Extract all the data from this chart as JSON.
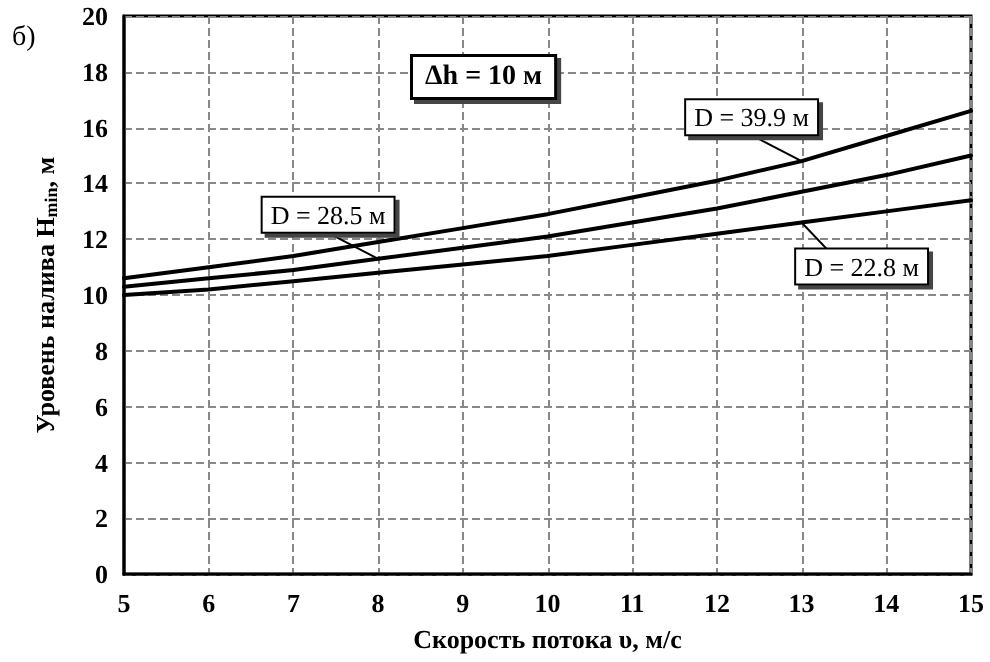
{
  "chart_data": {
    "type": "line",
    "xlabel": "Скорость потока υ, м/с",
    "ylabel": "Уровень налива H$_{min}$, м",
    "annotations": [
      "б)",
      "Δh = 10 м"
    ],
    "x": [
      5,
      6,
      7,
      8,
      9,
      10,
      11,
      12,
      13,
      14,
      15
    ],
    "series": [
      {
        "name": "D = 39.9 м",
        "color": "#000000",
        "values": [
          10.6,
          11.0,
          11.4,
          11.9,
          12.4,
          12.9,
          13.5,
          14.1,
          14.8,
          15.7,
          16.6
        ]
      },
      {
        "name": "D = 28.5 м",
        "color": "#000000",
        "values": [
          10.3,
          10.6,
          10.9,
          11.3,
          11.7,
          12.1,
          12.6,
          13.1,
          13.7,
          14.3,
          15.0
        ]
      },
      {
        "name": "D = 22.8 м",
        "color": "#000000",
        "values": [
          10.0,
          10.2,
          10.5,
          10.8,
          11.1,
          11.4,
          11.8,
          12.2,
          12.6,
          13.0,
          13.4
        ]
      }
    ],
    "xlim": [
      5,
      15
    ],
    "xticks": [
      5,
      6,
      7,
      8,
      9,
      10,
      11,
      12,
      13,
      14,
      15
    ],
    "ylim": [
      0,
      20
    ],
    "yticks": [
      0,
      2,
      4,
      6,
      8,
      10,
      12,
      14,
      16,
      18,
      20
    ],
    "grid": true,
    "legend": false,
    "marker": "none",
    "line_style": "solid"
  }
}
